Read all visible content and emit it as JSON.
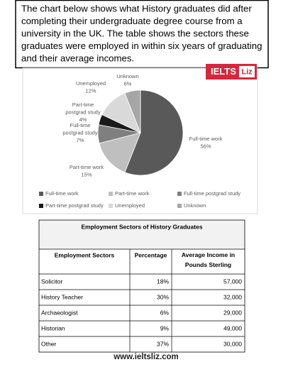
{
  "prompt": {
    "lines": [
      "The chart below shows what History graduates did after",
      "completing their undergraduate degree course from a",
      "university in the UK. The table shows the sectors these",
      "graduates were employed in within six years of graduating",
      "and their average incomes."
    ]
  },
  "badge": {
    "brand": "IELTS",
    "name": "Liz"
  },
  "chart_data": {
    "type": "pie",
    "categories": [
      "Full-time work",
      "Part-time work",
      "Full-time postgrad study",
      "Part-time postgrad study",
      "Unemployed",
      "Unknown"
    ],
    "values": [
      56,
      15,
      7,
      4,
      12,
      6
    ],
    "value_labels": [
      "56%",
      "15%",
      "7%",
      "4%",
      "12%",
      "6%"
    ],
    "colors": [
      "#595959",
      "#bfbfbf",
      "#7f7f7f",
      "#1a1a1a",
      "#d9d9d9",
      "#a6a6a6"
    ],
    "legend": "bottom"
  },
  "table": {
    "title": "Employment Sectors of History Graduates",
    "header": [
      "Employment Sectors",
      "Percentage",
      "Average Income in Pounds Sterling"
    ],
    "rows": [
      [
        "Solicitor",
        "18%",
        "57,000"
      ],
      [
        "History Teacher",
        "30%",
        "32,000"
      ],
      [
        "Archaeologist",
        "6%",
        "29,000"
      ],
      [
        "Historian",
        "9%",
        "49,000"
      ],
      [
        "Other",
        "37%",
        "30,000"
      ]
    ]
  },
  "footer": "www.ieltsliz.com"
}
